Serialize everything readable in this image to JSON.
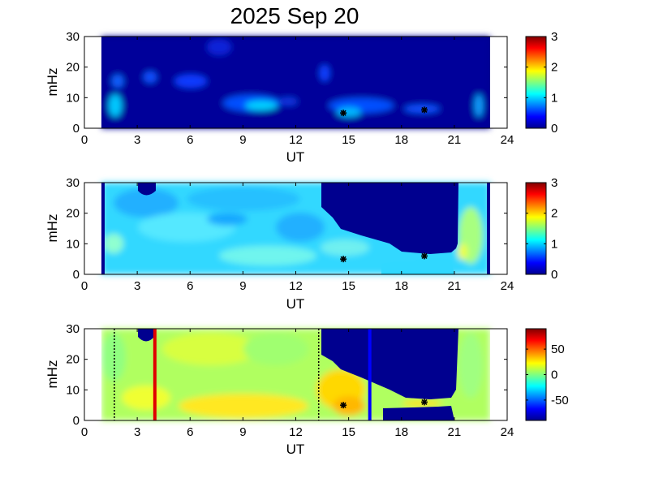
{
  "title": "2025 Sep 20",
  "chart_data": [
    {
      "type": "heatmap",
      "xlabel": "UT",
      "ylabel": "mHz",
      "xlim": [
        0,
        24
      ],
      "ylim": [
        0,
        30
      ],
      "xticks": [
        0,
        3,
        6,
        9,
        12,
        15,
        18,
        21,
        24
      ],
      "yticks": [
        0,
        10,
        20,
        30
      ],
      "data_range": [
        1.0,
        23.0
      ],
      "colorbar": {
        "min": 0,
        "max": 3,
        "ticks": [
          0,
          1,
          2,
          3
        ],
        "colormap": "jet"
      },
      "markers": [
        {
          "x": 14.7,
          "y": 5
        },
        {
          "x": 19.3,
          "y": 6
        }
      ],
      "vertical_lines": []
    },
    {
      "type": "heatmap",
      "xlabel": "UT",
      "ylabel": "mHz",
      "xlim": [
        0,
        24
      ],
      "ylim": [
        0,
        30
      ],
      "xticks": [
        0,
        3,
        6,
        9,
        12,
        15,
        18,
        21,
        24
      ],
      "yticks": [
        0,
        10,
        20,
        30
      ],
      "data_range": [
        1.0,
        23.0
      ],
      "colorbar": {
        "min": 0,
        "max": 3,
        "ticks": [
          0,
          1,
          2,
          3
        ],
        "colormap": "jet"
      },
      "markers": [
        {
          "x": 14.7,
          "y": 5
        },
        {
          "x": 19.3,
          "y": 6
        }
      ],
      "vertical_lines": []
    },
    {
      "type": "heatmap",
      "xlabel": "UT",
      "ylabel": "mHz",
      "xlim": [
        0,
        24
      ],
      "ylim": [
        0,
        30
      ],
      "xticks": [
        0,
        3,
        6,
        9,
        12,
        15,
        18,
        21,
        24
      ],
      "yticks": [
        0,
        10,
        20,
        30
      ],
      "data_range": [
        1.0,
        23.0
      ],
      "colorbar": {
        "min": -90,
        "max": 90,
        "ticks": [
          -50,
          0,
          50
        ],
        "colormap": "jet"
      },
      "markers": [
        {
          "x": 14.7,
          "y": 5
        },
        {
          "x": 19.3,
          "y": 6
        }
      ],
      "vertical_lines": [
        {
          "x": 1.7,
          "color": "#000000",
          "style": "dotted"
        },
        {
          "x": 4.0,
          "color": "#e00000",
          "style": "solid"
        },
        {
          "x": 13.3,
          "color": "#000000",
          "style": "dotted"
        },
        {
          "x": 16.2,
          "color": "#0000ff",
          "style": "solid"
        }
      ]
    }
  ]
}
